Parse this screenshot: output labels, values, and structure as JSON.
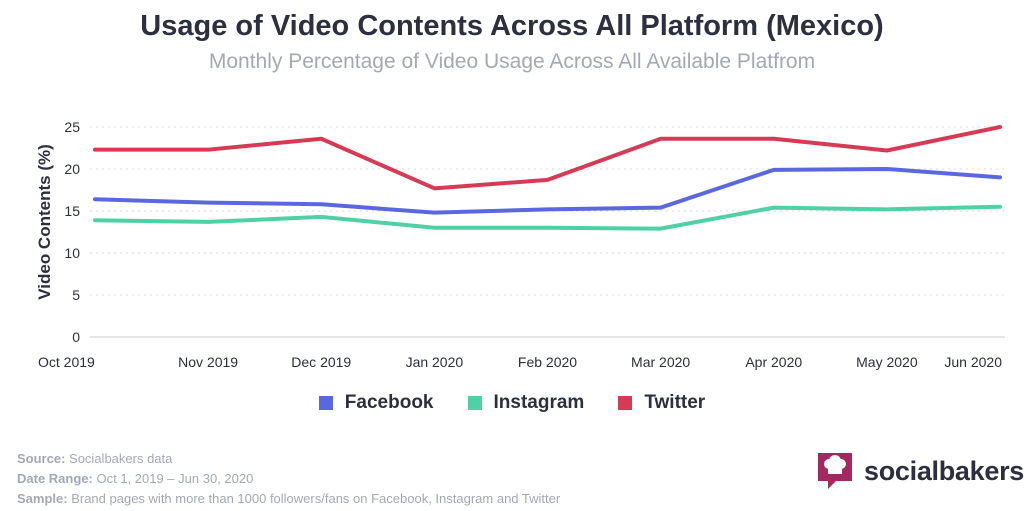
{
  "chart_data": {
    "type": "line",
    "title": "Usage of Video Contents Across All Platform (Mexico)",
    "subtitle": "Monthly Percentage of Video Usage Across All Available Platfrom",
    "xlabel": "",
    "ylabel": "Video Contents (%)",
    "ylim": [
      0,
      25
    ],
    "yticks": [
      0,
      5,
      10,
      15,
      20,
      25
    ],
    "grid": true,
    "legend_position": "bottom",
    "categories": [
      "Oct 2019",
      "Nov 2019",
      "Dec 2019",
      "Jan 2020",
      "Feb 2020",
      "Mar 2020",
      "Apr 2020",
      "May 2020",
      "Jun 2020"
    ],
    "series": [
      {
        "name": "Facebook",
        "color": "#5b67e0",
        "values": [
          16.4,
          16.0,
          15.8,
          14.8,
          15.2,
          15.4,
          19.9,
          20.0,
          19.0
        ]
      },
      {
        "name": "Instagram",
        "color": "#4fd1a5",
        "values": [
          13.9,
          13.7,
          14.3,
          13.0,
          13.0,
          12.9,
          15.4,
          15.2,
          15.5
        ]
      },
      {
        "name": "Twitter",
        "color": "#d63a55",
        "values": [
          22.3,
          22.3,
          23.6,
          17.7,
          18.7,
          23.6,
          23.6,
          22.2,
          25.0
        ]
      }
    ]
  },
  "footer": {
    "source_label": "Source:",
    "source_value": "Socialbakers data",
    "date_label": "Date Range:",
    "date_value": "Oct 1, 2019  – Jun 30, 2020",
    "sample_label": "Sample:",
    "sample_value": "Brand pages with more than 1000 followers/fans on Facebook, Instagram and Twitter"
  },
  "logo": {
    "text": "socialbakers",
    "icon": "chef-hat-icon",
    "color": "#a3285f"
  }
}
